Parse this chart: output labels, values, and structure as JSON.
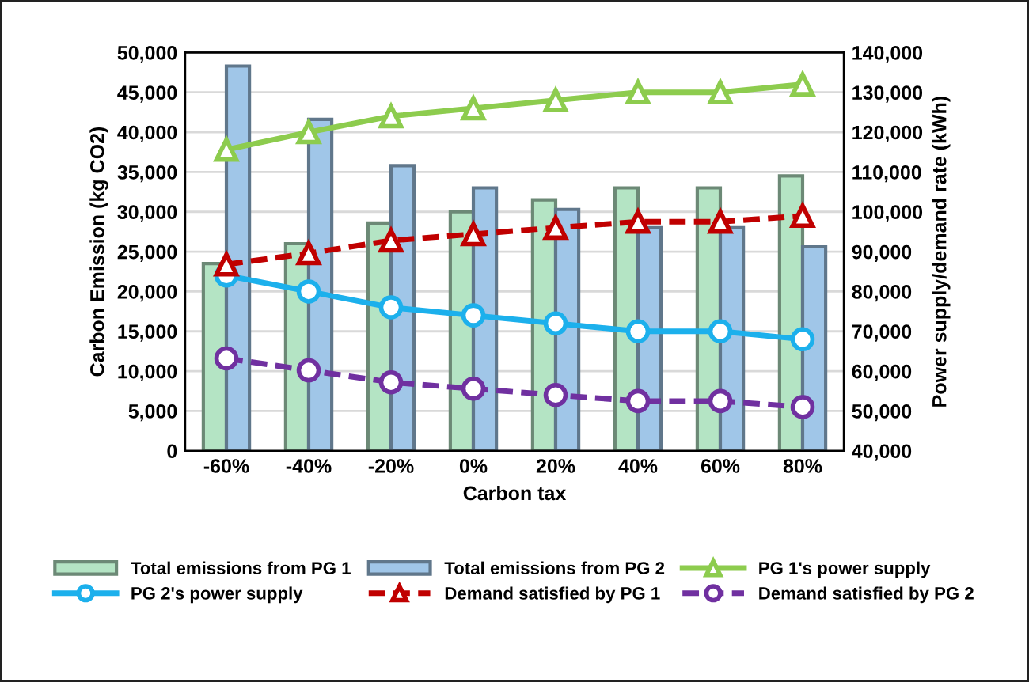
{
  "chart_data": {
    "type": "bar",
    "xlabel": "Carbon tax",
    "ylabel": "Carbon Emission (kg CO2)",
    "y2label": "Power supply/demand rate (kWh)",
    "categories": [
      "-60%",
      "-40%",
      "-20%",
      "0%",
      "20%",
      "40%",
      "60%",
      "80%"
    ],
    "series": [
      {
        "name": "Total emissions from PG 1",
        "color": "#b4e4c4",
        "values": [
          23500,
          26000,
          28600,
          30000,
          31500,
          33000,
          33000,
          34500
        ]
      },
      {
        "name": "Total emissions from PG 2",
        "color": "#a0c6e8",
        "values": [
          48300,
          41600,
          35800,
          33000,
          30300,
          28000,
          28000,
          25600
        ]
      },
      {
        "name": "PG 1's power supply",
        "type": "line",
        "axis": "y2",
        "color": "#8dcc4e",
        "marker": "triangle",
        "line_style": "solid",
        "values": [
          115600,
          120000,
          124000,
          126000,
          128000,
          130000,
          130000,
          132000
        ]
      },
      {
        "name": "PG 2's power supply",
        "type": "line",
        "axis": "y2",
        "color": "#1cb0ec",
        "marker": "circle",
        "line_style": "solid",
        "values": [
          84000,
          80000,
          76000,
          74000,
          72000,
          70000,
          70000,
          68000
        ]
      },
      {
        "name": "Demand satisfied by PG 1",
        "type": "line",
        "axis": "y2",
        "color": "#c00000",
        "marker": "triangle",
        "line_style": "dashed",
        "values": [
          86800,
          89600,
          92800,
          94400,
          96000,
          97500,
          97500,
          99000
        ]
      },
      {
        "name": "Demand satisfied by PG 2",
        "type": "line",
        "axis": "y2",
        "color": "#7030a0",
        "marker": "circle",
        "line_style": "dashed",
        "values": [
          63200,
          60200,
          57200,
          55600,
          54000,
          52500,
          52500,
          51000
        ]
      }
    ],
    "ylim": [
      0,
      50000
    ],
    "yticks": [
      {
        "value": 0,
        "label": "0"
      },
      {
        "value": 5000,
        "label": "5,000"
      },
      {
        "value": 10000,
        "label": "10,000"
      },
      {
        "value": 15000,
        "label": "15,000"
      },
      {
        "value": 20000,
        "label": "20,000"
      },
      {
        "value": 25000,
        "label": "25,000"
      },
      {
        "value": 30000,
        "label": "30,000"
      },
      {
        "value": 35000,
        "label": "35,000"
      },
      {
        "value": 40000,
        "label": "40,000"
      },
      {
        "value": 45000,
        "label": "45,000"
      },
      {
        "value": 50000,
        "label": "50,000"
      }
    ],
    "y2lim": [
      40000,
      140000
    ],
    "y2ticks": [
      {
        "value": 40000,
        "label": "40,000"
      },
      {
        "value": 50000,
        "label": "50,000"
      },
      {
        "value": 60000,
        "label": "60,000"
      },
      {
        "value": 70000,
        "label": "70,000"
      },
      {
        "value": 80000,
        "label": "80,000"
      },
      {
        "value": 90000,
        "label": "90,000"
      },
      {
        "value": 100000,
        "label": "100,000"
      },
      {
        "value": 110000,
        "label": "110,000"
      },
      {
        "value": 120000,
        "label": "120,000"
      },
      {
        "value": 130000,
        "label": "130,000"
      },
      {
        "value": 140000,
        "label": "140,000"
      }
    ],
    "grid": "y",
    "legend": "bottom"
  }
}
